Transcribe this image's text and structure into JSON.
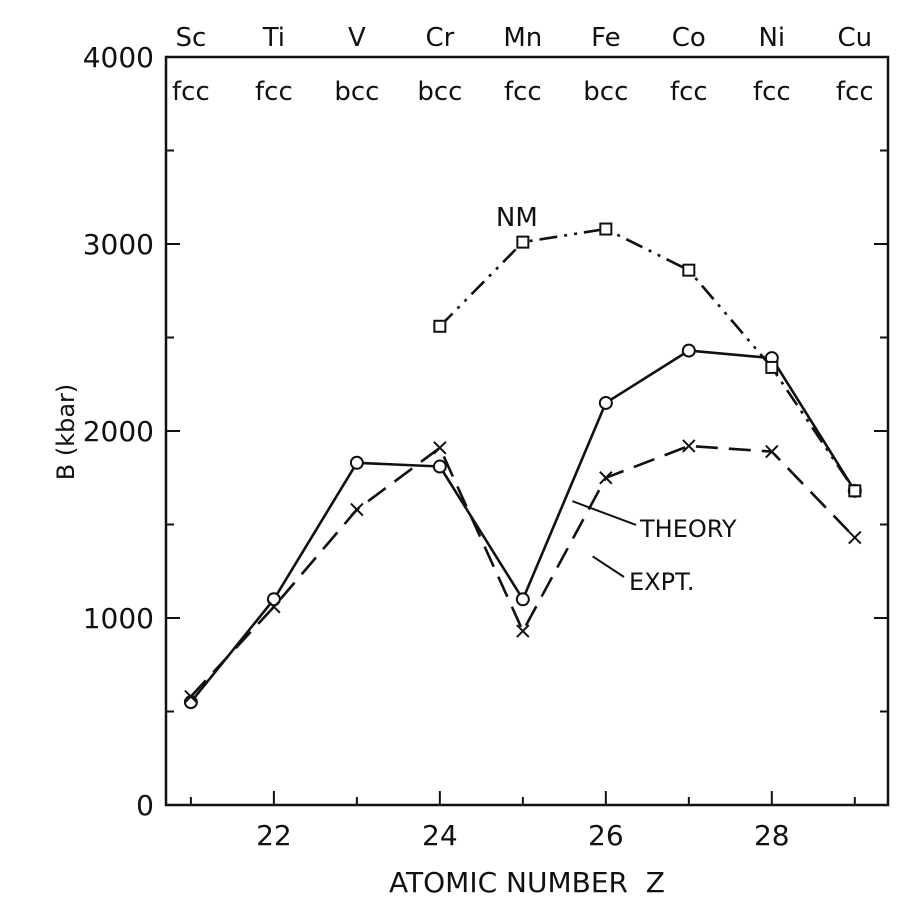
{
  "chart_data": {
    "type": "line",
    "xlabel": "ATOMIC NUMBER  Z",
    "ylabel": "B (kbar)",
    "xlim": [
      20.7,
      29.4
    ],
    "ylim": [
      0,
      4000
    ],
    "x_ticks": [
      22,
      24,
      26,
      28
    ],
    "y_ticks": [
      0,
      1000,
      2000,
      3000,
      4000
    ],
    "grid": false,
    "elements": [
      {
        "z": 21,
        "symbol": "Sc",
        "structure": "fcc"
      },
      {
        "z": 22,
        "symbol": "Ti",
        "structure": "fcc"
      },
      {
        "z": 23,
        "symbol": "V",
        "structure": "bcc"
      },
      {
        "z": 24,
        "symbol": "Cr",
        "structure": "bcc"
      },
      {
        "z": 25,
        "symbol": "Mn",
        "structure": "fcc"
      },
      {
        "z": 26,
        "symbol": "Fe",
        "structure": "bcc"
      },
      {
        "z": 27,
        "symbol": "Co",
        "structure": "fcc"
      },
      {
        "z": 28,
        "symbol": "Ni",
        "structure": "fcc"
      },
      {
        "z": 29,
        "symbol": "Cu",
        "structure": "fcc"
      }
    ],
    "series": [
      {
        "name": "THEORY",
        "marker": "circle",
        "line_style": "solid",
        "x": [
          21,
          22,
          23,
          24,
          25,
          26,
          27,
          28,
          29
        ],
        "y": [
          550,
          1100,
          1830,
          1810,
          1100,
          2150,
          2430,
          2390,
          1680
        ]
      },
      {
        "name": "EXPT.",
        "marker": "x",
        "line_style": "dashed",
        "x": [
          21,
          22,
          23,
          24,
          25,
          26,
          27,
          28,
          29
        ],
        "y": [
          580,
          1060,
          1580,
          1910,
          930,
          1750,
          1920,
          1890,
          1430
        ]
      },
      {
        "name": "NM",
        "marker": "square",
        "line_style": "dash-dot-dot",
        "x": [
          24,
          25,
          26,
          27,
          28,
          29
        ],
        "y": [
          2560,
          3010,
          3080,
          2860,
          2340,
          1680
        ]
      }
    ]
  }
}
